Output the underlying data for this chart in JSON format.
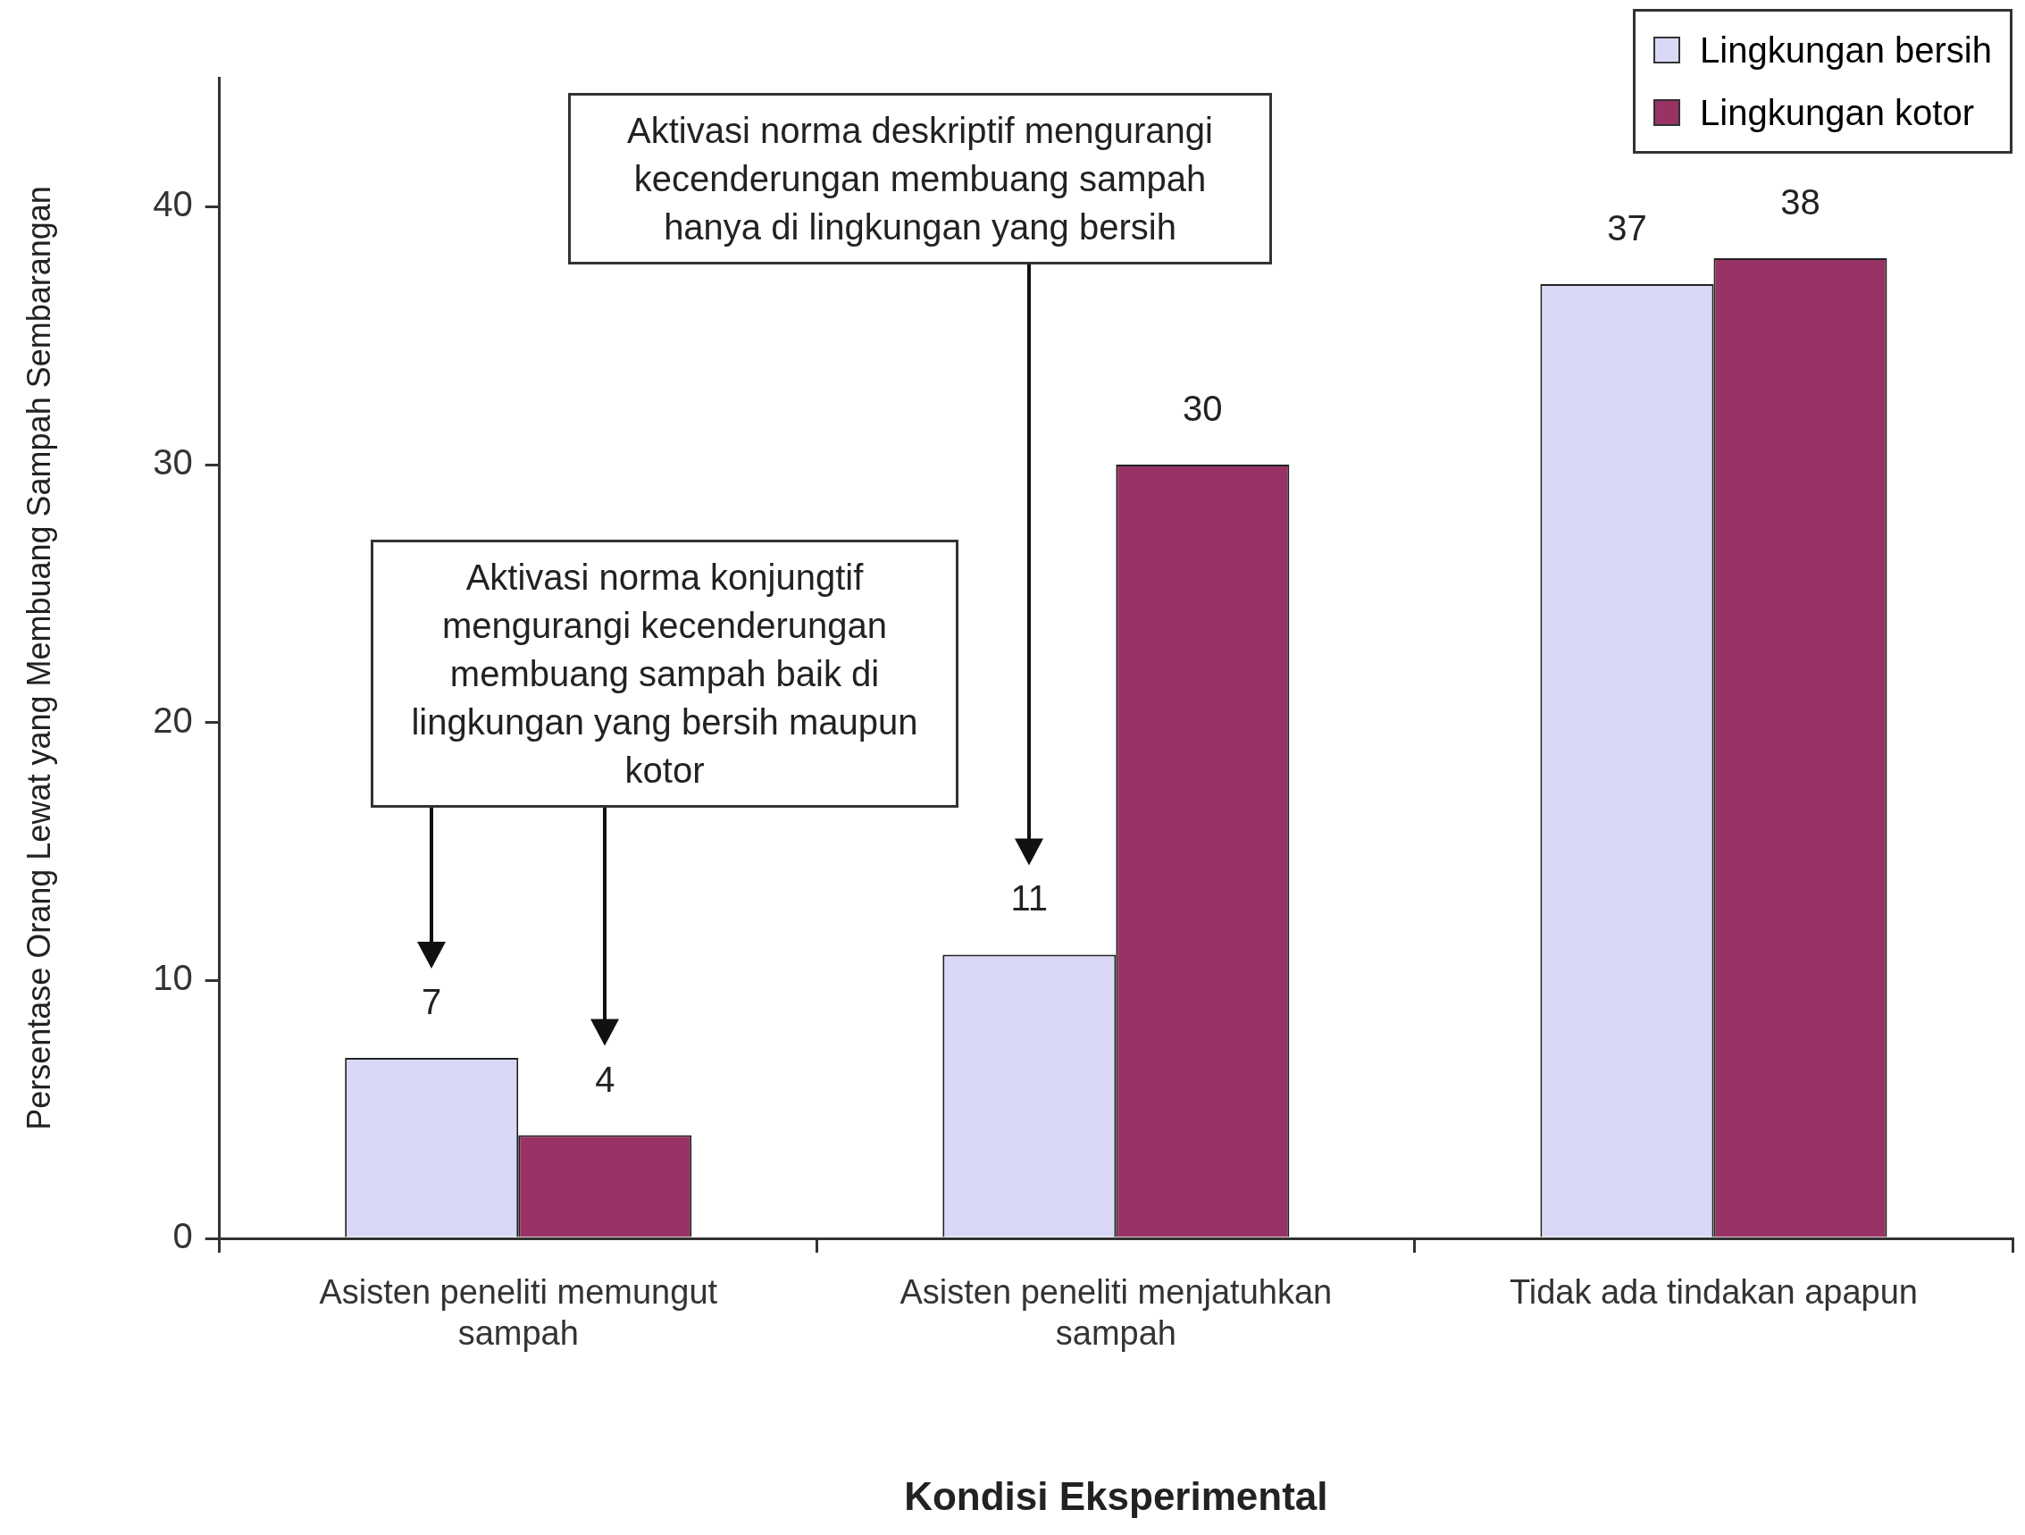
{
  "chart_data": {
    "type": "bar",
    "xlabel": "Kondisi Eksperimental",
    "ylabel": "Persentase Orang Lewat yang Membuang Sampah Sembarangan",
    "categories": [
      "Asisten peneliti memungut sampah",
      "Asisten peneliti menjatuhkan sampah",
      "Tidak ada tindakan apapun"
    ],
    "series": [
      {
        "name": "Lingkungan bersih",
        "color": "#d9d9f7",
        "values": [
          7,
          11,
          37
        ]
      },
      {
        "name": "Lingkungan kotor",
        "color": "#993366",
        "values": [
          4,
          30,
          38
        ]
      }
    ],
    "ylim": [
      0,
      45
    ],
    "yticks": [
      0,
      10,
      20,
      30,
      40
    ],
    "grid": false,
    "legend": "top right",
    "data_labels": true,
    "annotations": [
      "Aktivasi norma konjungtif mengurangi kecenderungan membuang sampah baik di lingkungan yang bersih maupun kotor",
      "Aktivasi norma deskriptif mengurangi kecenderungan membuang sampah hanya di lingkungan yang bersih"
    ]
  }
}
